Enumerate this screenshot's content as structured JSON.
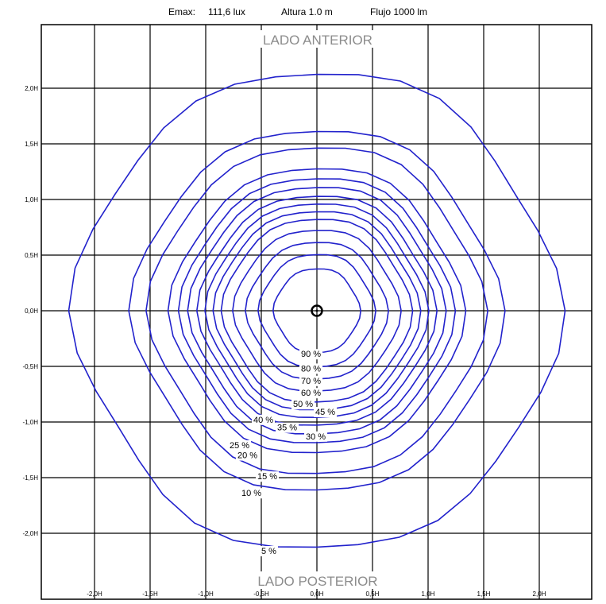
{
  "header": {
    "emax_label": "Emax:",
    "emax_value": "111,6 lux",
    "height_text": "Altura 1.0 m",
    "flux_text": "Flujo 1000 lm"
  },
  "chart_data": {
    "type": "contour",
    "title": "Emax: 111,6 lux   Altura 1.0 m   Flujo 1000 lm",
    "top_label": "LADO ANTERIOR",
    "bottom_label": "LADO POSTERIOR",
    "x_ticks": [
      "-2,0H",
      "-1,5H",
      "-1,0H",
      "-0,5H",
      "0,0H",
      "0,5H",
      "1,0H",
      "1,5H",
      "2,0H"
    ],
    "y_ticks": [
      "2,0H",
      "1,5H",
      "1,0H",
      "0,5H",
      "0,0H",
      "-0,5H",
      "-1,0H",
      "-1,5H",
      "-2,0H"
    ],
    "xlim": [
      -2.4,
      2.4
    ],
    "ylim": [
      -2.4,
      2.4
    ],
    "grid": true,
    "contour_color": "#2222cc",
    "contours": [
      {
        "label": "90 %",
        "radius": 0.38
      },
      {
        "label": "80 %",
        "radius": 0.51
      },
      {
        "label": "70 %",
        "radius": 0.62
      },
      {
        "label": "60 %",
        "radius": 0.73
      },
      {
        "label": "50 %",
        "radius": 0.83
      },
      {
        "label": "45 %",
        "radius": 0.9
      },
      {
        "label": "40 %",
        "radius": 0.97
      },
      {
        "label": "35 %",
        "radius": 1.04
      },
      {
        "label": "30 %",
        "radius": 1.12
      },
      {
        "label": "25 %",
        "radius": 1.2
      },
      {
        "label": "20 %",
        "radius": 1.29
      },
      {
        "label": "15 %",
        "radius": 1.48
      },
      {
        "label": "10 %",
        "radius": 1.63
      },
      {
        "label": "5 %",
        "radius": 2.15
      }
    ]
  }
}
